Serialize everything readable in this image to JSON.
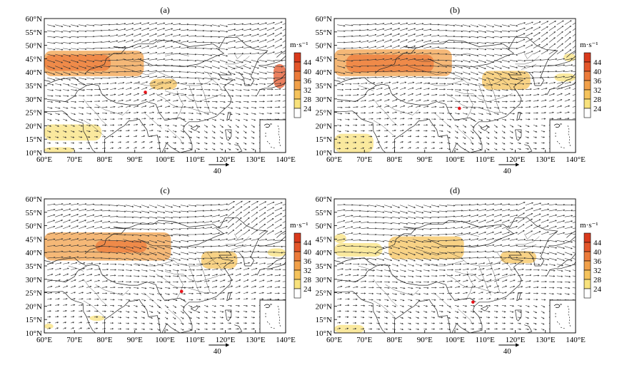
{
  "figure": {
    "units": "m·s⁻¹",
    "reference_vector": "40",
    "x_ticks": [
      "60°E",
      "70°E",
      "80°E",
      "90°E",
      "100°E",
      "110°E",
      "120°E",
      "130°E",
      "140°E"
    ],
    "y_ticks": [
      "60°N",
      "55°N",
      "50°N",
      "45°N",
      "40°N",
      "35°N",
      "30°N",
      "25°N",
      "20°N",
      "15°N",
      "10°N"
    ],
    "colorbar": {
      "labels": [
        "44",
        "40",
        "36",
        "32",
        "28",
        "24"
      ],
      "colors": [
        "#d93a1c",
        "#e4562a",
        "#ec7b3a",
        "#f1a049",
        "#f5c35c",
        "#f8e27d",
        "#ffffff"
      ]
    },
    "colors": {
      "land_line": "#222222",
      "vector": "#333333",
      "frame": "#000000",
      "site_marker": "#e8141b"
    }
  },
  "panels": [
    {
      "label": "(a)",
      "site": {
        "lon": 93.5,
        "lat": 32.5
      },
      "jets": [
        {
          "lon0": 60,
          "lon1": 93,
          "lat0": 38.5,
          "lat1": 48,
          "level": 32
        },
        {
          "lon0": 60,
          "lon1": 82,
          "lat0": 40.5,
          "lat1": 46.5,
          "level": 36
        },
        {
          "lon0": 95,
          "lon1": 104,
          "lat0": 33.5,
          "lat1": 37.5,
          "level": 28
        },
        {
          "lon0": 136,
          "lon1": 140,
          "lat0": 34,
          "lat1": 43,
          "level": 40
        },
        {
          "lon0": 60,
          "lon1": 79,
          "lat0": 14.5,
          "lat1": 20.5,
          "level": 24
        },
        {
          "lon0": 60,
          "lon1": 70,
          "lat0": 10,
          "lat1": 12,
          "level": 24
        }
      ]
    },
    {
      "label": "(b)",
      "site": {
        "lon": 101.5,
        "lat": 26.5
      },
      "jets": [
        {
          "lon0": 60,
          "lon1": 99,
          "lat0": 38.5,
          "lat1": 48.5,
          "level": 32
        },
        {
          "lon0": 64,
          "lon1": 93,
          "lat0": 40,
          "lat1": 46.5,
          "level": 36
        },
        {
          "lon0": 109,
          "lon1": 125,
          "lat0": 33.5,
          "lat1": 40.5,
          "level": 28
        },
        {
          "lon0": 133,
          "lon1": 140,
          "lat0": 36.5,
          "lat1": 39.5,
          "level": 24
        },
        {
          "lon0": 136,
          "lon1": 140,
          "lat0": 44,
          "lat1": 47,
          "level": 24
        },
        {
          "lon0": 60,
          "lon1": 73,
          "lat0": 10,
          "lat1": 17,
          "level": 24
        }
      ]
    },
    {
      "label": "(c)",
      "site": {
        "lon": 105.5,
        "lat": 25.5
      },
      "jets": [
        {
          "lon0": 60,
          "lon1": 102,
          "lat0": 37,
          "lat1": 47.5,
          "level": 32
        },
        {
          "lon0": 77,
          "lon1": 94,
          "lat0": 40,
          "lat1": 44.5,
          "level": 36
        },
        {
          "lon0": 112,
          "lon1": 124,
          "lat0": 34,
          "lat1": 40.5,
          "level": 28
        },
        {
          "lon0": 134,
          "lon1": 140,
          "lat0": 38.5,
          "lat1": 41.5,
          "level": 24
        },
        {
          "lon0": 60,
          "lon1": 63,
          "lat0": 11.5,
          "lat1": 13.5,
          "level": 24
        },
        {
          "lon0": 75,
          "lon1": 80,
          "lat0": 14.5,
          "lat1": 16.5,
          "level": 24
        }
      ]
    },
    {
      "label": "(d)",
      "site": {
        "lon": 106,
        "lat": 21.5
      },
      "jets": [
        {
          "lon0": 78,
          "lon1": 103,
          "lat0": 37.5,
          "lat1": 46,
          "level": 28
        },
        {
          "lon0": 60,
          "lon1": 76,
          "lat0": 38.5,
          "lat1": 43.5,
          "level": 24
        },
        {
          "lon0": 60,
          "lon1": 64,
          "lat0": 43.5,
          "lat1": 47,
          "level": 24
        },
        {
          "lon0": 115,
          "lon1": 127,
          "lat0": 36,
          "lat1": 40.5,
          "level": 28
        },
        {
          "lon0": 60,
          "lon1": 70,
          "lat0": 10,
          "lat1": 13,
          "level": 24
        }
      ]
    }
  ]
}
